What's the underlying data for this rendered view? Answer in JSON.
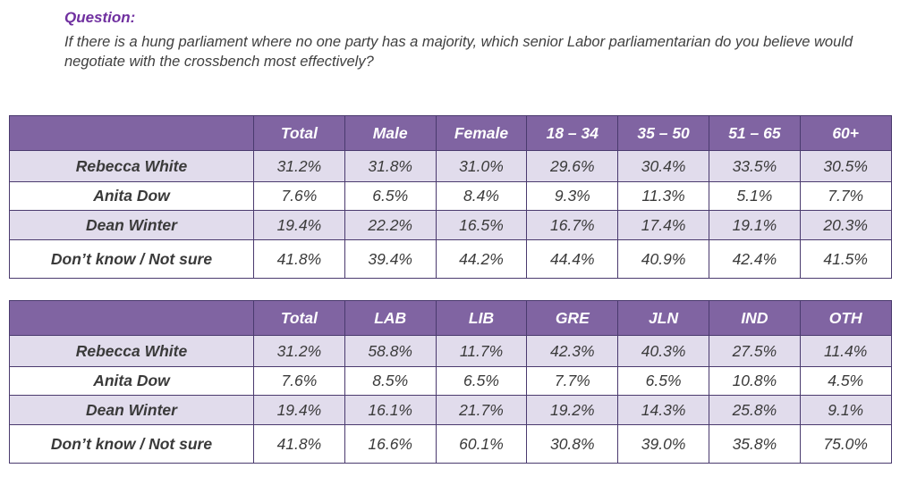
{
  "question": {
    "label": "Question:",
    "text": "If there is a hung parliament where no one party has a majority, which senior Labor parliamentarian do you believe would negotiate with the crossbench most effectively?"
  },
  "table_demographics": {
    "headers": [
      "",
      "Total",
      "Male",
      "Female",
      "18 – 34",
      "35 – 50",
      "51 – 65",
      "60+"
    ],
    "rows": [
      {
        "label": "Rebecca White",
        "values": [
          "31.2%",
          "31.8%",
          "31.0%",
          "29.6%",
          "30.4%",
          "33.5%",
          "30.5%"
        ]
      },
      {
        "label": "Anita Dow",
        "values": [
          "7.6%",
          "6.5%",
          "8.4%",
          "9.3%",
          "11.3%",
          "5.1%",
          "7.7%"
        ]
      },
      {
        "label": "Dean Winter",
        "values": [
          "19.4%",
          "22.2%",
          "16.5%",
          "16.7%",
          "17.4%",
          "19.1%",
          "20.3%"
        ]
      },
      {
        "label": "Don’t know / Not sure",
        "values": [
          "41.8%",
          "39.4%",
          "44.2%",
          "44.4%",
          "40.9%",
          "42.4%",
          "41.5%"
        ]
      }
    ]
  },
  "table_party": {
    "headers": [
      "",
      "Total",
      "LAB",
      "LIB",
      "GRE",
      "JLN",
      "IND",
      "OTH"
    ],
    "rows": [
      {
        "label": "Rebecca White",
        "values": [
          "31.2%",
          "58.8%",
          "11.7%",
          "42.3%",
          "40.3%",
          "27.5%",
          "11.4%"
        ]
      },
      {
        "label": "Anita Dow",
        "values": [
          "7.6%",
          "8.5%",
          "6.5%",
          "7.7%",
          "6.5%",
          "10.8%",
          "4.5%"
        ]
      },
      {
        "label": "Dean Winter",
        "values": [
          "19.4%",
          "16.1%",
          "21.7%",
          "19.2%",
          "14.3%",
          "25.8%",
          "9.1%"
        ]
      },
      {
        "label": "Don’t know / Not sure",
        "values": [
          "41.8%",
          "16.6%",
          "60.1%",
          "30.8%",
          "39.0%",
          "35.8%",
          "75.0%"
        ]
      }
    ]
  },
  "colors": {
    "header_bg": "#8064a2",
    "row_band": "#e1dcec",
    "question_label": "#7030a0"
  }
}
